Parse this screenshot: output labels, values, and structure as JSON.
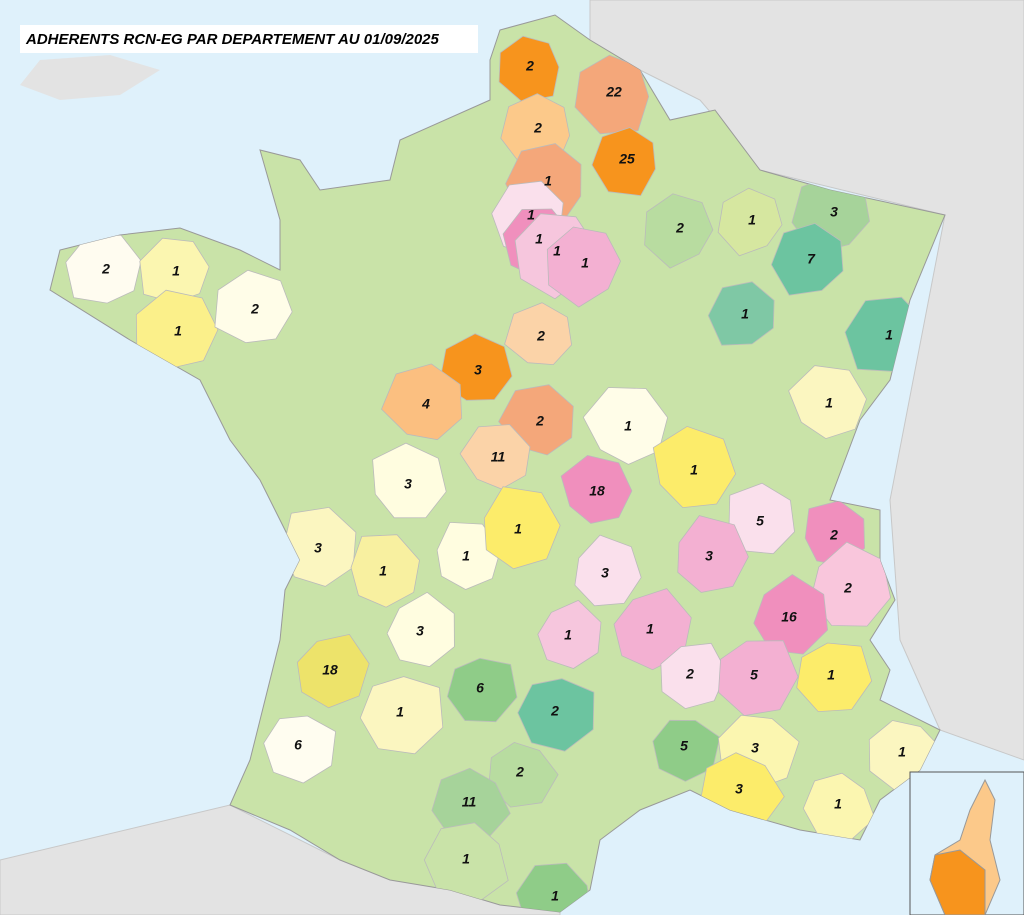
{
  "title": "ADHERENTS RCN-EG PAR DEPARTEMENT AU 01/09/2025",
  "departments": [
    {
      "count": 2,
      "color": "#f7941d"
    },
    {
      "count": 22,
      "color": "#f4a77a"
    },
    {
      "count": 2,
      "color": "#fcc98a"
    },
    {
      "count": 25,
      "color": "#f7941d"
    },
    {
      "count": 1,
      "color": "#f4a77a"
    },
    {
      "count": 1,
      "color": "#fae0ec"
    },
    {
      "count": 1,
      "color": "#f08fbd"
    },
    {
      "count": 1,
      "color": "#f6c6dd"
    },
    {
      "count": 1,
      "color": "#f3b0d2"
    },
    {
      "count": 2,
      "color": "#b8dca0"
    },
    {
      "count": 1,
      "color": "#d6e7a0"
    },
    {
      "count": 3,
      "color": "#a6d39a"
    },
    {
      "count": 7,
      "color": "#6cc4a0"
    },
    {
      "count": 1,
      "color": "#7fc8a5"
    },
    {
      "count": 1,
      "color": "#6cc4a0"
    },
    {
      "count": 2,
      "color": "#fffcf0"
    },
    {
      "count": 1,
      "color": "#fbf6b0"
    },
    {
      "count": 1,
      "color": "#fbf08a"
    },
    {
      "count": 2,
      "color": "#fffde8"
    },
    {
      "count": 3,
      "color": "#f7941d"
    },
    {
      "count": 2,
      "color": "#fbd3a8"
    },
    {
      "count": 4,
      "color": "#fbbf80"
    },
    {
      "count": 2,
      "color": "#f4a77a"
    },
    {
      "count": 11,
      "color": "#fbd3a8"
    },
    {
      "count": 1,
      "color": "#fffde8"
    },
    {
      "count": 1,
      "color": "#fbf6c0"
    },
    {
      "count": 18,
      "color": "#f08fbd"
    },
    {
      "count": 1,
      "color": "#fcec6a"
    },
    {
      "count": 3,
      "color": "#fffde0"
    },
    {
      "count": 5,
      "color": "#fae0ec"
    },
    {
      "count": 2,
      "color": "#f08fbd"
    },
    {
      "count": 3,
      "color": "#fbf6c0"
    },
    {
      "count": 1,
      "color": "#f8f0a0"
    },
    {
      "count": 1,
      "color": "#fffde0"
    },
    {
      "count": 1,
      "color": "#fcec6a"
    },
    {
      "count": 3,
      "color": "#f3b0d2"
    },
    {
      "count": 3,
      "color": "#fae0ec"
    },
    {
      "count": 2,
      "color": "#f9c6dc"
    },
    {
      "count": 16,
      "color": "#f08fbd"
    },
    {
      "count": 3,
      "color": "#fffde0"
    },
    {
      "count": 1,
      "color": "#f6c6dd"
    },
    {
      "count": 1,
      "color": "#f3b0d2"
    },
    {
      "count": 18,
      "color": "#ede36a"
    },
    {
      "count": 2,
      "color": "#fae0ec"
    },
    {
      "count": 5,
      "color": "#f3b0d2"
    },
    {
      "count": 1,
      "color": "#fcec6a"
    },
    {
      "count": 6,
      "color": "#8fcc88"
    },
    {
      "count": 1,
      "color": "#fbf6c0"
    },
    {
      "count": 2,
      "color": "#6cc4a0"
    },
    {
      "count": 6,
      "color": "#fffdf0"
    },
    {
      "count": 5,
      "color": "#8fcc88"
    },
    {
      "count": 3,
      "color": "#fbf6b0"
    },
    {
      "count": 1,
      "color": "#fbf6c0"
    },
    {
      "count": 2,
      "color": "#b8dca0"
    },
    {
      "count": 3,
      "color": "#fcec6a"
    },
    {
      "count": 11,
      "color": "#a6d39a"
    },
    {
      "count": 1,
      "color": "#fbf6b0"
    },
    {
      "count": 1,
      "color": "#c9e3a8"
    },
    {
      "count": 1,
      "color": "#8fcc88"
    }
  ]
}
